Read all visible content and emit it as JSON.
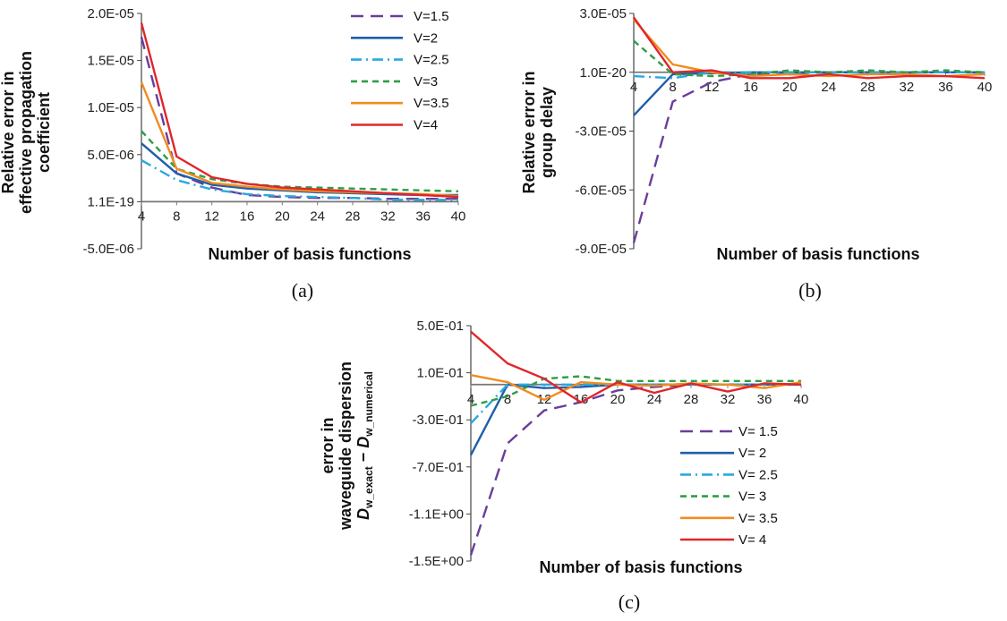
{
  "chart_data": [
    {
      "type": "line",
      "caption": "(a)",
      "xlabel": "Number of basis functions",
      "ylabel_lines": [
        "Relative error in",
        "effective propagation",
        "coefficient"
      ],
      "categories": [
        "4",
        "8",
        "12",
        "16",
        "20",
        "24",
        "28",
        "32",
        "36",
        "40"
      ],
      "yticks": [
        "2.0E-05",
        "1.5E-05",
        "1.0E-05",
        "5.0E-06",
        "1.1E-19",
        "-5.0E-06"
      ],
      "ylim": [
        -5e-06,
        2e-05
      ],
      "grid": false,
      "legend_position": "top-right",
      "series": [
        {
          "name": "V=1.5",
          "color": "#6a3d9a",
          "dash": "14,8",
          "values": [
            1.75e-05,
            3e-06,
            1.5e-06,
            7e-07,
            5e-07,
            4e-07,
            4e-07,
            3e-07,
            3e-07,
            3e-07
          ]
        },
        {
          "name": "V=2",
          "color": "#1f5fa8",
          "dash": "",
          "values": [
            6.2e-06,
            3e-06,
            1.8e-06,
            1.4e-06,
            1.2e-06,
            1e-06,
            9e-07,
            8e-07,
            7e-07,
            7e-07
          ]
        },
        {
          "name": "V=2.5",
          "color": "#29a8e0",
          "dash": "12,5,2,5",
          "values": [
            4.4e-06,
            2.3e-06,
            1.3e-06,
            8e-07,
            6e-07,
            5e-07,
            4e-07,
            2e-07,
            2e-07,
            2e-07
          ]
        },
        {
          "name": "V=3",
          "color": "#2e9e44",
          "dash": "7,5",
          "values": [
            7.5e-06,
            3.5e-06,
            2.4e-06,
            1.9e-06,
            1.6e-06,
            1.5e-06,
            1.4e-06,
            1.3e-06,
            1.2e-06,
            1.1e-06
          ]
        },
        {
          "name": "V=3.5",
          "color": "#f08c1e",
          "dash": "",
          "values": [
            1.27e-05,
            3.5e-06,
            2e-06,
            1.6e-06,
            1.3e-06,
            1.1e-06,
            1e-06,
            9e-07,
            8e-07,
            6e-07
          ]
        },
        {
          "name": "V=4",
          "color": "#e0262a",
          "dash": "",
          "values": [
            1.9e-05,
            4.8e-06,
            2.6e-06,
            1.9e-06,
            1.5e-06,
            1.3e-06,
            1.1e-06,
            9e-07,
            7e-07,
            5e-07
          ]
        }
      ]
    },
    {
      "type": "line",
      "caption": "(b)",
      "xlabel": "Number of basis functions",
      "ylabel_lines": [
        "Relative error in",
        "group delay"
      ],
      "categories": [
        "4",
        "8",
        "12",
        "16",
        "20",
        "24",
        "28",
        "32",
        "36",
        "40"
      ],
      "yticks": [
        "3.0E-05",
        "1.0E-20",
        "-3.0E-05",
        "-6.0E-05",
        "-9.0E-05"
      ],
      "ylim": [
        -9e-05,
        3e-05
      ],
      "grid": false,
      "legend_position": "none",
      "series": [
        {
          "name": "V=1.5",
          "color": "#6a3d9a",
          "dash": "14,8",
          "values": [
            -8.7e-05,
            -1.5e-05,
            -5e-06,
            -1e-06,
            -5e-07,
            0,
            0,
            0,
            0,
            0
          ]
        },
        {
          "name": "V=2",
          "color": "#1f5fa8",
          "dash": "",
          "values": [
            -2.2e-05,
            -1e-06,
            -5e-07,
            0,
            0,
            0,
            0,
            0,
            0,
            0
          ]
        },
        {
          "name": "V=2.5",
          "color": "#29a8e0",
          "dash": "12,5,2,5",
          "values": [
            -2e-06,
            -3e-06,
            0,
            0,
            0,
            0,
            0,
            0,
            0,
            0
          ]
        },
        {
          "name": "V=3",
          "color": "#2e9e44",
          "dash": "7,5",
          "values": [
            1.6e-05,
            -1e-06,
            -2e-06,
            -1e-06,
            1e-06,
            0,
            1e-06,
            0,
            1e-06,
            0
          ]
        },
        {
          "name": "V=3.5",
          "color": "#f08c1e",
          "dash": "",
          "values": [
            2.7e-05,
            4e-06,
            0,
            -2e-06,
            -1e-06,
            -2e-06,
            -1e-06,
            -1e-06,
            -2e-06,
            -1e-06
          ]
        },
        {
          "name": "V=4",
          "color": "#e0262a",
          "dash": "",
          "values": [
            2.8e-05,
            0,
            1e-06,
            -3e-06,
            -3e-06,
            -1e-06,
            -3e-06,
            -2e-06,
            -2e-06,
            -3e-06
          ]
        }
      ]
    },
    {
      "type": "line",
      "caption": "(c)",
      "xlabel": "Number of basis functions",
      "ylabel_lines": [
        "error in",
        "waveguide dispersion"
      ],
      "ylabel_math": {
        "d": "D",
        "w": "w",
        "exact": "_exact",
        "minus": " − ",
        "numerical": "_numerical"
      },
      "categories": [
        "4",
        "8",
        "12",
        "16",
        "20",
        "24",
        "28",
        "32",
        "36",
        "40"
      ],
      "yticks": [
        "5.0E-01",
        "1.0E-01",
        "-3.0E-01",
        "-7.0E-01",
        "-1.1E+00",
        "-1.5E+00"
      ],
      "ylim": [
        -1.5,
        0.5
      ],
      "grid": false,
      "legend_position": "right",
      "series": [
        {
          "name": "V= 1.5",
          "color": "#6a3d9a",
          "dash": "14,8",
          "values": [
            -1.45,
            -0.5,
            -0.22,
            -0.15,
            -0.05,
            -0.02,
            0,
            0,
            0,
            0
          ]
        },
        {
          "name": "V= 2",
          "color": "#1f5fa8",
          "dash": "",
          "values": [
            -0.6,
            0,
            -0.03,
            -0.02,
            0,
            0,
            0,
            0,
            0,
            0
          ]
        },
        {
          "name": "V= 2.5",
          "color": "#29a8e0",
          "dash": "12,5,2,5",
          "values": [
            -0.33,
            0,
            0,
            0,
            0,
            0,
            0,
            0,
            0,
            0
          ]
        },
        {
          "name": "V= 3",
          "color": "#2e9e44",
          "dash": "7,5",
          "values": [
            -0.18,
            -0.1,
            0.05,
            0.07,
            0.03,
            0.03,
            0.03,
            0.03,
            0.03,
            0.03
          ]
        },
        {
          "name": "V= 3.5",
          "color": "#f08c1e",
          "dash": "",
          "values": [
            0.08,
            0.02,
            -0.13,
            0.02,
            0,
            -0.01,
            0.01,
            0,
            -0.03,
            0.02
          ]
        },
        {
          "name": "V= 4",
          "color": "#e0262a",
          "dash": "",
          "values": [
            0.45,
            0.18,
            0.05,
            -0.15,
            0.02,
            -0.07,
            0.01,
            -0.06,
            0.01,
            0
          ]
        }
      ]
    }
  ]
}
